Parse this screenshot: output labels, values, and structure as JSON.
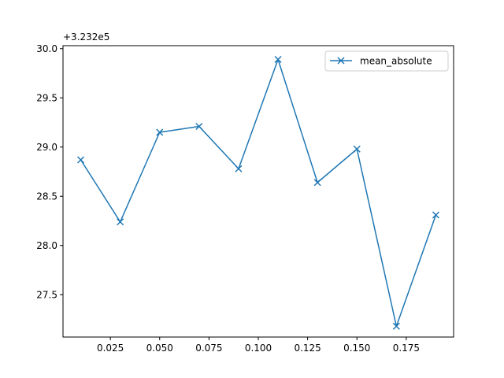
{
  "chart_data": {
    "type": "line",
    "title": "",
    "xlabel": "",
    "ylabel": "",
    "offset_label": "+3.232e5",
    "x": [
      0.01,
      0.03,
      0.05,
      0.07,
      0.09,
      0.11,
      0.13,
      0.15,
      0.17,
      0.19
    ],
    "series": [
      {
        "name": "mean_absolute",
        "values": [
          28.87,
          28.24,
          29.15,
          29.21,
          28.78,
          29.89,
          28.64,
          28.98,
          27.18,
          28.31
        ],
        "color": "#1f77b4",
        "marker": "x"
      }
    ],
    "xlim": [
      0.001,
      0.199
    ],
    "ylim": [
      27.07,
      30.03
    ],
    "xticks": [
      "0.025",
      "0.050",
      "0.075",
      "0.100",
      "0.125",
      "0.150",
      "0.175"
    ],
    "yticks": [
      "27.5",
      "28.0",
      "28.5",
      "29.0",
      "29.5",
      "30.0"
    ],
    "grid": false,
    "legend_position": "top-right"
  }
}
